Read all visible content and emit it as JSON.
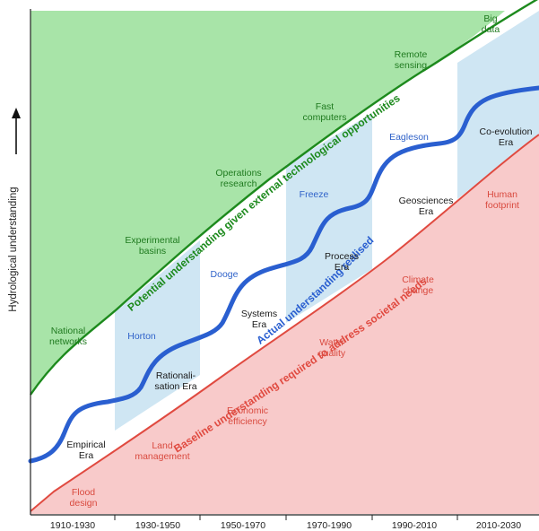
{
  "y_axis": {
    "label": "Hydrological understanding"
  },
  "x_axis": {
    "periods": [
      "1910-1930",
      "1930-1950",
      "1950-1970",
      "1970-1990",
      "1990-2010",
      "2010-2030"
    ]
  },
  "curves": {
    "potential": {
      "label": "Potential understanding given external technological opportunities",
      "color": "#1d8a1d"
    },
    "actual": {
      "label": "Actual understanding realised",
      "color": "#2a5fd0"
    },
    "baseline": {
      "label": "Baseline understanding required to address societal needs",
      "color": "#e04a40"
    }
  },
  "colors": {
    "potential_fill": "#a8e4a8",
    "baseline_fill": "#f8caca",
    "band_fill": "#cfe6f3"
  },
  "technology_labels": [
    {
      "line1": "National",
      "line2": "networks"
    },
    {
      "line1": "Experimental",
      "line2": "basins"
    },
    {
      "line1": "Operations",
      "line2": "research"
    },
    {
      "line1": "Fast",
      "line2": "computers"
    },
    {
      "line1": "Remote",
      "line2": "sensing"
    },
    {
      "line1": "Big",
      "line2": "data"
    }
  ],
  "scientists": [
    "Horton",
    "Dooge",
    "Freeze",
    "Eagleson"
  ],
  "eras": [
    {
      "line1": "Empirical",
      "line2": "Era"
    },
    {
      "line1": "Rationali-",
      "line2": "sation Era"
    },
    {
      "line1": "Systems",
      "line2": "Era"
    },
    {
      "line1": "Process",
      "line2": "Era"
    },
    {
      "line1": "Geosciences",
      "line2": "Era"
    },
    {
      "line1": "Co-evolution",
      "line2": "Era"
    }
  ],
  "societal_needs": [
    {
      "line1": "Flood",
      "line2": "design"
    },
    {
      "line1": "Land",
      "line2": "management"
    },
    {
      "line1": "Economic",
      "line2": "efficiency"
    },
    {
      "line1": "Water",
      "line2": "quality"
    },
    {
      "line1": "Climate",
      "line2": "change"
    },
    {
      "line1": "Human",
      "line2": "footprint"
    }
  ]
}
